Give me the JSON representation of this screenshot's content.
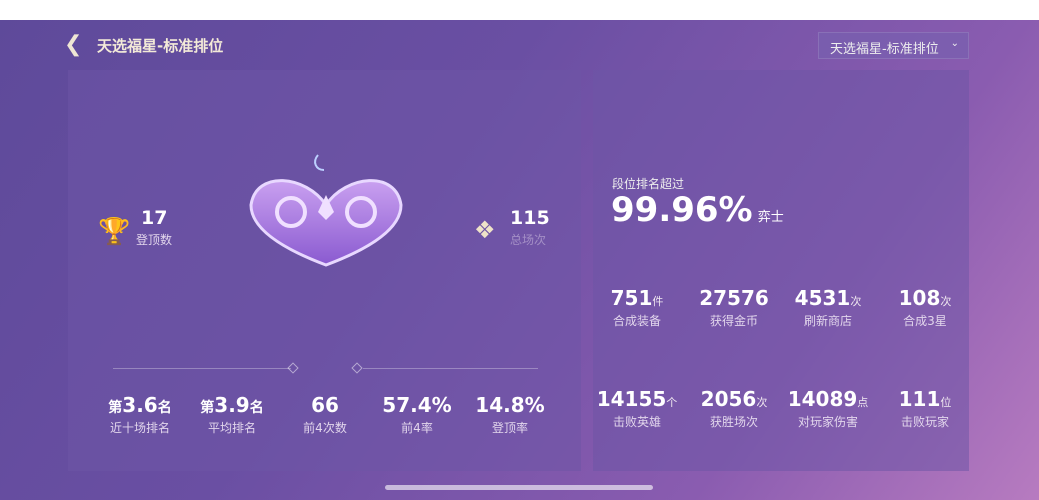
{
  "header": {
    "title": "天选福星-标准排位",
    "mode_select": "天选福星-标准排位"
  },
  "left": {
    "top_finishes": {
      "value": "17",
      "label": "登顶数"
    },
    "total_games": {
      "value": "115",
      "label": "总场次"
    },
    "stats": [
      {
        "prefix": "第",
        "value": "3.6",
        "suffix": "名",
        "label": "近十场排名"
      },
      {
        "prefix": "第",
        "value": "3.9",
        "suffix": "名",
        "label": "平均排名"
      },
      {
        "prefix": "",
        "value": "66",
        "suffix": "",
        "label": "前4次数"
      },
      {
        "prefix": "",
        "value": "57.4%",
        "suffix": "",
        "label": "前4率"
      },
      {
        "prefix": "",
        "value": "14.8%",
        "suffix": "",
        "label": "登顶率"
      }
    ]
  },
  "right": {
    "rank_label": "段位排名超过",
    "rank_value": "99.96%",
    "rank_unit": "弈士",
    "stats": [
      {
        "value": "751",
        "unit": "件",
        "label": "合成装备"
      },
      {
        "value": "27576",
        "unit": "",
        "label": "获得金币"
      },
      {
        "value": "4531",
        "unit": "次",
        "label": "刷新商店"
      },
      {
        "value": "108",
        "unit": "次",
        "label": "合成3星"
      },
      {
        "value": "14155",
        "unit": "个",
        "label": "击败英雄"
      },
      {
        "value": "2056",
        "unit": "次",
        "label": "获胜场次"
      },
      {
        "value": "14089",
        "unit": "点",
        "label": "对玩家伤害"
      },
      {
        "value": "111",
        "unit": "位",
        "label": "击败玩家"
      }
    ]
  }
}
